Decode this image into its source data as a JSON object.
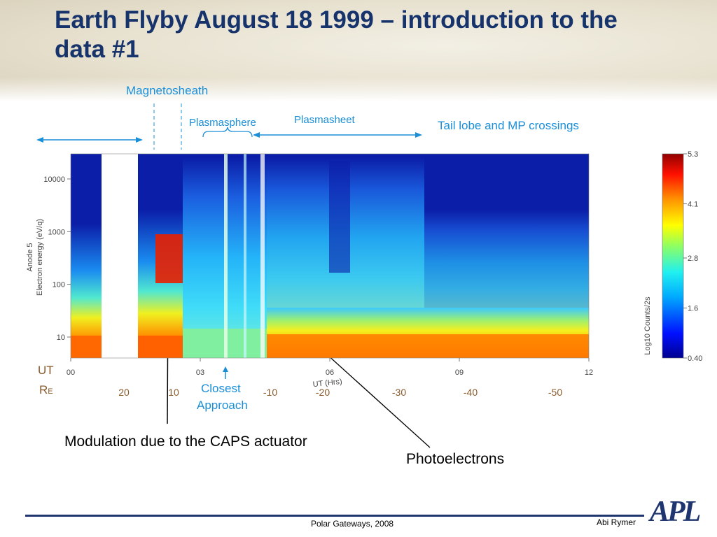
{
  "slide": {
    "title": "Earth Flyby August 18 1999 – introduction to the data #1",
    "footer_center": "Polar Gateways, 2008",
    "footer_right": "Abi Rymer",
    "logo": "APL"
  },
  "annotations": {
    "magnetosheath": "Magnetosheath",
    "plasmasphere": "Plasmasphere",
    "plasmasheet": "Plasmasheet",
    "tail_lobe": "Tail lobe and MP crossings",
    "closest_approach_1": "Closest",
    "closest_approach_2": "Approach",
    "modulation": "Modulation due to the CAPS actuator",
    "photoelectrons": "Photoelectrons",
    "ut_row_label": "UT",
    "re_row_label": "R",
    "re_row_sub": "E"
  },
  "chart_data": {
    "type": "heatmap",
    "title": "",
    "ylabel_line1": "Anode 5",
    "ylabel_line2": "Electron energy  (eV/q)",
    "xlabel": "UT  (Hrs)",
    "y_scale": "log",
    "ylim": [
      4,
      30000
    ],
    "xlim": [
      0,
      12
    ],
    "x_ticks": [
      "00",
      "03",
      "06",
      "09",
      "12"
    ],
    "y_ticks": [
      "10",
      "100",
      "1000",
      "10000"
    ],
    "colorbar": {
      "label": "Log10 Counts/2s",
      "ticks": [
        "5.3",
        "4.1",
        "2.8",
        "1.6",
        "0.40"
      ],
      "range": [
        0.4,
        5.3
      ]
    },
    "re_ticks": [
      "20",
      "10",
      "-10",
      "-20",
      "-30",
      "-40",
      "-50"
    ],
    "colors": {
      "background": "#0b1ea8",
      "title": "#17336b",
      "annotation": "#1a8fd8",
      "re_labels": "#8a5a2a"
    }
  }
}
